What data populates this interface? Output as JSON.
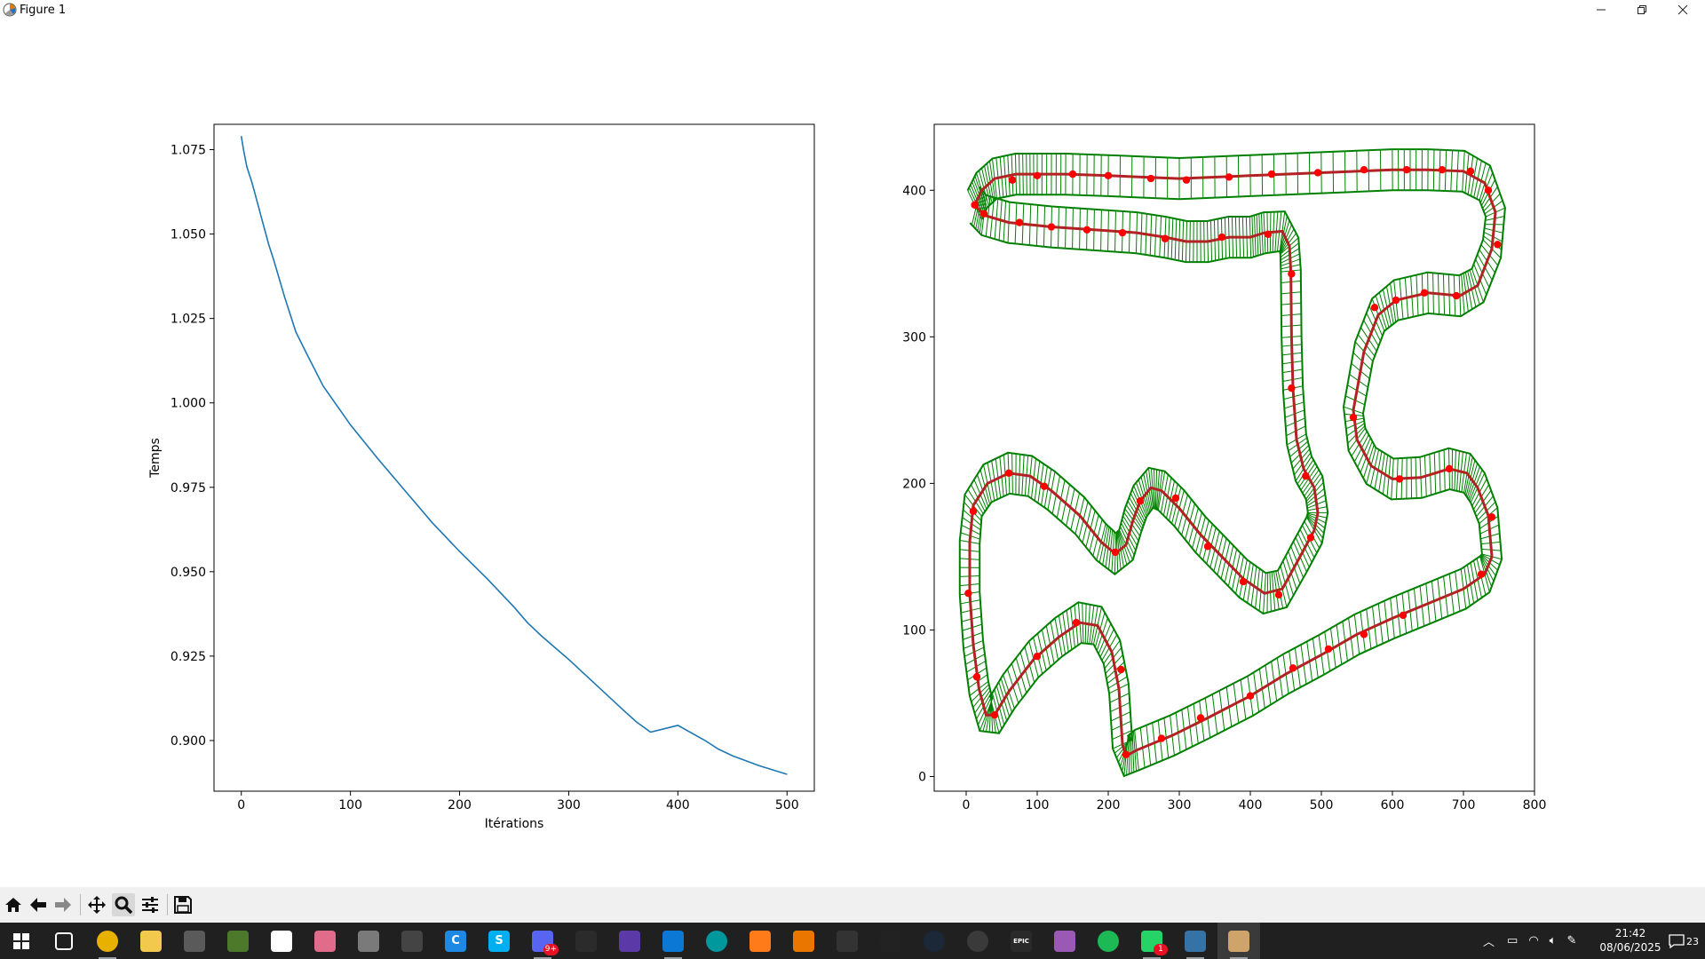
{
  "window": {
    "title": "Figure 1"
  },
  "chart_data": [
    {
      "type": "line",
      "title": "",
      "xlabel": "Itérations",
      "ylabel": "Temps",
      "xlim": [
        -25,
        525
      ],
      "ylim": [
        0.885,
        1.0825
      ],
      "xticks": [
        0,
        100,
        200,
        300,
        400,
        500
      ],
      "xtick_labels": [
        "0",
        "100",
        "200",
        "300",
        "400",
        "500"
      ],
      "yticks": [
        0.9,
        0.925,
        0.95,
        0.975,
        1.0,
        1.025,
        1.05,
        1.075
      ],
      "ytick_labels": [
        "0.900",
        "0.925",
        "0.950",
        "0.975",
        "1.000",
        "1.025",
        "1.050",
        "1.075"
      ],
      "grid": false,
      "series": [
        {
          "color": "#1f77b4",
          "x": [
            0,
            2,
            5,
            10,
            15,
            20,
            25,
            30,
            40,
            50,
            60,
            75,
            100,
            125,
            150,
            175,
            200,
            225,
            250,
            262,
            275,
            300,
            325,
            350,
            362,
            375,
            400,
            425,
            437,
            450,
            475,
            500
          ],
          "y": [
            1.079,
            1.075,
            1.07,
            1.065,
            1.059,
            1.053,
            1.047,
            1.042,
            1.031,
            1.021,
            1.0145,
            1.005,
            0.9935,
            0.9835,
            0.974,
            0.9645,
            0.956,
            0.948,
            0.9395,
            0.935,
            0.931,
            0.924,
            0.9165,
            0.909,
            0.9055,
            0.9025,
            0.9045,
            0.9,
            0.8975,
            0.8955,
            0.8925,
            0.89
          ]
        }
      ]
    },
    {
      "type": "line",
      "title": "",
      "xlabel": "",
      "ylabel": "",
      "xlim": [
        -45,
        800
      ],
      "ylim": [
        -10,
        445
      ],
      "xticks": [
        0,
        100,
        200,
        300,
        400,
        500,
        600,
        700,
        800
      ],
      "xtick_labels": [
        "0",
        "100",
        "200",
        "300",
        "400",
        "500",
        "600",
        "700",
        "800"
      ],
      "yticks": [
        0,
        100,
        200,
        300,
        400
      ],
      "ytick_labels": [
        "0",
        "100",
        "200",
        "300",
        "400"
      ],
      "grid": false,
      "track": {
        "band_color": "#008000",
        "line_color": "#b22222",
        "marker_color": "#ff0000",
        "half_width": 14,
        "centerline": [
          [
            12,
            390
          ],
          [
            22,
            400
          ],
          [
            40,
            408
          ],
          [
            70,
            411
          ],
          [
            100,
            411
          ],
          [
            140,
            411
          ],
          [
            200,
            410
          ],
          [
            300,
            408
          ],
          [
            400,
            410
          ],
          [
            500,
            412
          ],
          [
            600,
            414
          ],
          [
            650,
            414
          ],
          [
            700,
            413
          ],
          [
            730,
            405
          ],
          [
            745,
            385
          ],
          [
            740,
            360
          ],
          [
            720,
            335
          ],
          [
            695,
            328
          ],
          [
            650,
            330
          ],
          [
            605,
            325
          ],
          [
            580,
            315
          ],
          [
            560,
            290
          ],
          [
            545,
            250
          ],
          [
            550,
            230
          ],
          [
            570,
            212
          ],
          [
            600,
            203
          ],
          [
            640,
            204
          ],
          [
            680,
            210
          ],
          [
            705,
            207
          ],
          [
            720,
            197
          ],
          [
            735,
            178
          ],
          [
            740,
            150
          ],
          [
            730,
            138
          ],
          [
            700,
            128
          ],
          [
            650,
            118
          ],
          [
            600,
            108
          ],
          [
            550,
            97
          ],
          [
            500,
            83
          ],
          [
            450,
            70
          ],
          [
            400,
            55
          ],
          [
            340,
            40
          ],
          [
            290,
            28
          ],
          [
            240,
            18
          ],
          [
            225,
            14
          ],
          [
            220,
            22
          ],
          [
            215,
            60
          ],
          [
            205,
            85
          ],
          [
            185,
            103
          ],
          [
            160,
            105
          ],
          [
            130,
            95
          ],
          [
            95,
            80
          ],
          [
            60,
            58
          ],
          [
            40,
            42
          ],
          [
            28,
            42
          ],
          [
            18,
            60
          ],
          [
            10,
            90
          ],
          [
            5,
            125
          ],
          [
            5,
            160
          ],
          [
            10,
            185
          ],
          [
            30,
            200
          ],
          [
            60,
            207
          ],
          [
            90,
            205
          ],
          [
            120,
            195
          ],
          [
            160,
            178
          ],
          [
            190,
            160
          ],
          [
            210,
            152
          ],
          [
            225,
            158
          ],
          [
            235,
            175
          ],
          [
            245,
            188
          ],
          [
            260,
            197
          ],
          [
            275,
            195
          ],
          [
            300,
            183
          ],
          [
            330,
            165
          ],
          [
            360,
            150
          ],
          [
            390,
            135
          ],
          [
            420,
            125
          ],
          [
            445,
            128
          ],
          [
            470,
            150
          ],
          [
            490,
            168
          ],
          [
            495,
            180
          ],
          [
            490,
            197
          ],
          [
            475,
            210
          ],
          [
            465,
            230
          ],
          [
            460,
            265
          ],
          [
            458,
            300
          ],
          [
            457,
            345
          ],
          [
            455,
            362
          ],
          [
            445,
            372
          ],
          [
            420,
            371
          ],
          [
            400,
            368
          ],
          [
            370,
            368
          ],
          [
            340,
            365
          ],
          [
            310,
            365
          ],
          [
            280,
            368
          ],
          [
            240,
            371
          ],
          [
            180,
            373
          ],
          [
            120,
            375
          ],
          [
            60,
            378
          ],
          [
            25,
            383
          ],
          [
            12,
            390
          ]
        ],
        "markers": [
          [
            12,
            390
          ],
          [
            25,
            384
          ],
          [
            65,
            407
          ],
          [
            100,
            410
          ],
          [
            150,
            411
          ],
          [
            200,
            410
          ],
          [
            260,
            408
          ],
          [
            310,
            407
          ],
          [
            370,
            409
          ],
          [
            430,
            411
          ],
          [
            495,
            412
          ],
          [
            560,
            414
          ],
          [
            620,
            414
          ],
          [
            670,
            414
          ],
          [
            710,
            413
          ],
          [
            735,
            400
          ],
          [
            748,
            363
          ],
          [
            690,
            328
          ],
          [
            645,
            330
          ],
          [
            605,
            325
          ],
          [
            575,
            320
          ],
          [
            545,
            245
          ],
          [
            610,
            203
          ],
          [
            680,
            210
          ],
          [
            740,
            177
          ],
          [
            725,
            138
          ],
          [
            615,
            110
          ],
          [
            560,
            97
          ],
          [
            510,
            87
          ],
          [
            460,
            74
          ],
          [
            400,
            55
          ],
          [
            330,
            40
          ],
          [
            275,
            26
          ],
          [
            225,
            15
          ],
          [
            218,
            73
          ],
          [
            155,
            105
          ],
          [
            100,
            82
          ],
          [
            40,
            42
          ],
          [
            15,
            68
          ],
          [
            3,
            125
          ],
          [
            10,
            181
          ],
          [
            60,
            207
          ],
          [
            110,
            198
          ],
          [
            210,
            153
          ],
          [
            245,
            188
          ],
          [
            295,
            190
          ],
          [
            340,
            157
          ],
          [
            390,
            133
          ],
          [
            440,
            124
          ],
          [
            485,
            163
          ],
          [
            478,
            205
          ],
          [
            458,
            265
          ],
          [
            458,
            343
          ],
          [
            425,
            370
          ],
          [
            360,
            368
          ],
          [
            280,
            367
          ],
          [
            220,
            371
          ],
          [
            170,
            373
          ],
          [
            120,
            375
          ],
          [
            75,
            378
          ]
        ]
      }
    }
  ],
  "toolbar": {
    "buttons": [
      {
        "name": "home",
        "icon": "home-icon"
      },
      {
        "name": "back",
        "icon": "back-arrow-icon"
      },
      {
        "name": "forward",
        "icon": "forward-arrow-icon"
      },
      {
        "name": "pan",
        "icon": "pan-icon"
      },
      {
        "name": "zoom",
        "icon": "zoom-icon",
        "active": true
      },
      {
        "name": "configure",
        "icon": "sliders-icon"
      },
      {
        "name": "save",
        "icon": "save-icon"
      }
    ]
  },
  "taskbar": {
    "clock_time": "21:42",
    "clock_date": "08/06/2025",
    "notification_count": "23",
    "apps": [
      {
        "name": "task-view",
        "icon": "task-view-icon"
      },
      {
        "name": "chrome",
        "icon": "chrome-icon"
      },
      {
        "name": "file-explorer",
        "icon": "folder-icon"
      },
      {
        "name": "minecraft-launcher",
        "icon": "creeper-icon"
      },
      {
        "name": "minecraft",
        "icon": "grass-block-icon"
      },
      {
        "name": "notepad",
        "icon": "file-icon"
      },
      {
        "name": "flower-app",
        "icon": "flower-icon"
      },
      {
        "name": "vmware",
        "icon": "vm-icon"
      },
      {
        "name": "xbox-controller",
        "icon": "gamepad-icon"
      },
      {
        "name": "ccleaner",
        "icon": "c-icon",
        "label": "C"
      },
      {
        "name": "skype",
        "icon": "skype-icon",
        "label": "S"
      },
      {
        "name": "discord",
        "icon": "discord-icon",
        "badge": "9+"
      },
      {
        "name": "obs",
        "icon": "obs-icon"
      },
      {
        "name": "game-dev",
        "icon": "pixel-icon"
      },
      {
        "name": "vscode",
        "icon": "vscode-icon"
      },
      {
        "name": "arduino",
        "icon": "infinity-icon"
      },
      {
        "name": "sublime",
        "icon": "sublime-icon"
      },
      {
        "name": "blender",
        "icon": "blender-icon"
      },
      {
        "name": "inkscape",
        "icon": "inkscape-icon"
      },
      {
        "name": "unity",
        "icon": "unity-icon"
      },
      {
        "name": "steam",
        "icon": "steam-icon"
      },
      {
        "name": "obs-studio",
        "icon": "circle-icon"
      },
      {
        "name": "epic-games",
        "icon": "epic-icon",
        "label": "EPIC"
      },
      {
        "name": "paint",
        "icon": "paint-icon"
      },
      {
        "name": "spotify",
        "icon": "spotify-icon"
      },
      {
        "name": "whatsapp",
        "icon": "whatsapp-icon",
        "badge": "1"
      },
      {
        "name": "python",
        "icon": "python-icon"
      },
      {
        "name": "matplotlib-figure",
        "icon": "figure-icon"
      }
    ]
  }
}
